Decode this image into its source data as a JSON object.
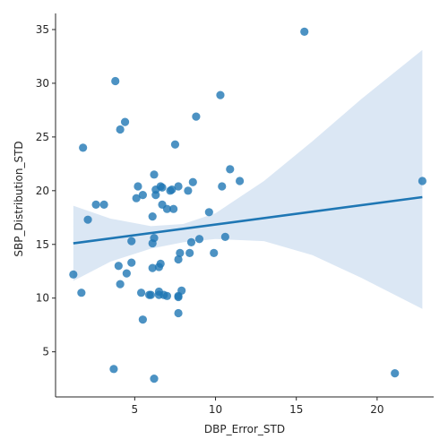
{
  "chart_data": {
    "type": "scatter",
    "title": "",
    "xlabel": "DBP_Error_STD",
    "ylabel": "SBP_Distribution_STD",
    "xlim": [
      0.1,
      23.5
    ],
    "ylim": [
      0.8,
      36.5
    ],
    "xticks": [
      5,
      10,
      15,
      20
    ],
    "yticks": [
      5,
      10,
      15,
      20,
      25,
      30,
      35
    ],
    "grid": false,
    "legend": "none",
    "colors": {
      "points": "#1f77b4",
      "regression_line": "#1f77b4",
      "confidence_band": "#cfdff0",
      "axis": "#262626"
    },
    "regression": {
      "x": [
        1.2,
        22.8
      ],
      "y": [
        15.1,
        19.4
      ]
    },
    "confidence_band": {
      "x": [
        1.2,
        3.5,
        6.0,
        8.0,
        10.0,
        13.0,
        16.0,
        19.0,
        22.8
      ],
      "upper": [
        18.6,
        17.4,
        16.7,
        16.9,
        17.9,
        20.9,
        24.6,
        28.5,
        33.1
      ],
      "lower": [
        11.6,
        13.4,
        14.6,
        15.2,
        15.5,
        15.3,
        14.0,
        11.9,
        9.0
      ]
    },
    "series": [
      {
        "points": [
          [
            1.2,
            12.2
          ],
          [
            1.7,
            10.5
          ],
          [
            1.8,
            24.0
          ],
          [
            2.1,
            17.3
          ],
          [
            2.6,
            18.7
          ],
          [
            3.1,
            18.7
          ],
          [
            3.7,
            3.4
          ],
          [
            3.8,
            30.2
          ],
          [
            4.0,
            13.0
          ],
          [
            4.1,
            25.7
          ],
          [
            4.1,
            11.3
          ],
          [
            4.4,
            26.4
          ],
          [
            4.5,
            12.3
          ],
          [
            4.8,
            15.3
          ],
          [
            4.8,
            13.3
          ],
          [
            5.1,
            19.3
          ],
          [
            5.2,
            20.4
          ],
          [
            5.4,
            10.5
          ],
          [
            5.5,
            8.0
          ],
          [
            5.5,
            19.6
          ],
          [
            5.9,
            10.3
          ],
          [
            6.0,
            10.3
          ],
          [
            6.1,
            17.6
          ],
          [
            6.1,
            12.8
          ],
          [
            6.1,
            15.1
          ],
          [
            6.2,
            15.6
          ],
          [
            6.2,
            2.5
          ],
          [
            6.2,
            21.5
          ],
          [
            6.3,
            19.6
          ],
          [
            6.3,
            20.1
          ],
          [
            6.5,
            10.6
          ],
          [
            6.5,
            10.3
          ],
          [
            6.5,
            12.9
          ],
          [
            6.6,
            20.4
          ],
          [
            6.6,
            13.2
          ],
          [
            6.7,
            20.3
          ],
          [
            6.7,
            18.7
          ],
          [
            6.8,
            10.3
          ],
          [
            7.0,
            18.3
          ],
          [
            7.0,
            10.2
          ],
          [
            7.2,
            20.0
          ],
          [
            7.3,
            20.1
          ],
          [
            7.4,
            18.3
          ],
          [
            7.5,
            24.3
          ],
          [
            7.7,
            20.4
          ],
          [
            7.7,
            13.6
          ],
          [
            7.7,
            10.1
          ],
          [
            7.7,
            10.2
          ],
          [
            7.7,
            8.6
          ],
          [
            7.8,
            14.2
          ],
          [
            7.9,
            10.7
          ],
          [
            8.3,
            20.0
          ],
          [
            8.4,
            14.2
          ],
          [
            8.5,
            15.2
          ],
          [
            8.6,
            20.8
          ],
          [
            8.8,
            26.9
          ],
          [
            9.0,
            15.5
          ],
          [
            9.6,
            18.0
          ],
          [
            9.9,
            14.2
          ],
          [
            10.3,
            28.9
          ],
          [
            10.4,
            20.4
          ],
          [
            10.6,
            15.7
          ],
          [
            10.9,
            22.0
          ],
          [
            11.5,
            20.9
          ],
          [
            15.5,
            34.8
          ],
          [
            21.1,
            3.0
          ],
          [
            22.8,
            20.9
          ]
        ]
      }
    ]
  }
}
